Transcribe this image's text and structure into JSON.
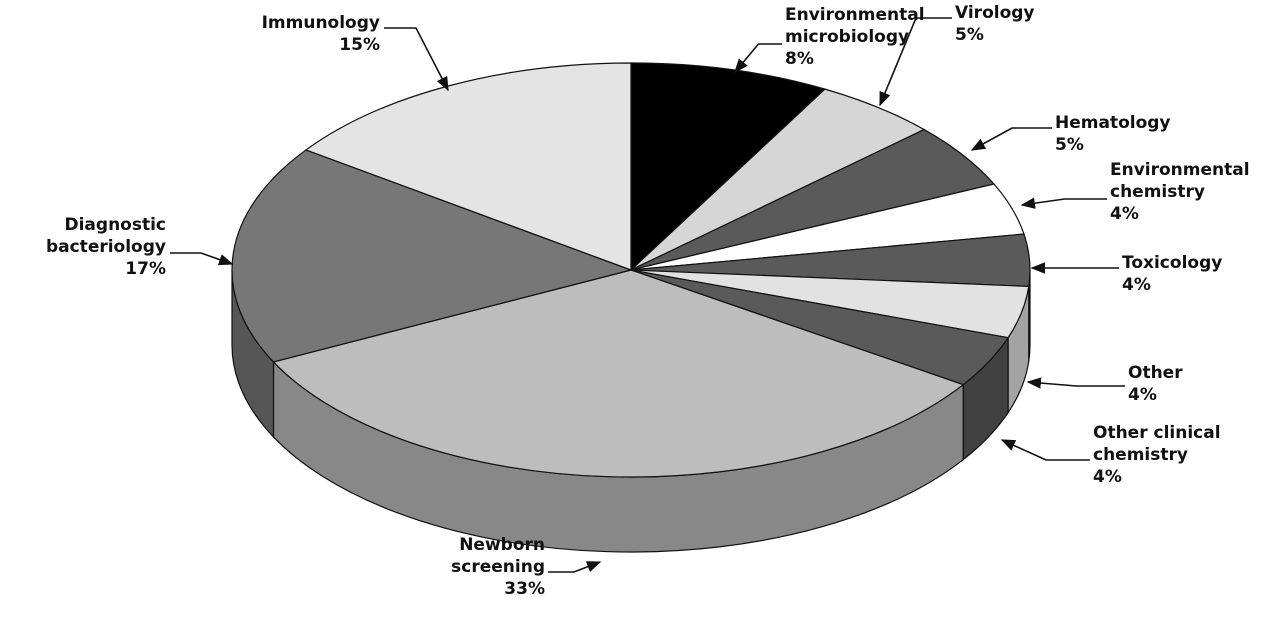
{
  "chart_data": {
    "type": "pie3d",
    "categories": [
      "Environmental\nmicrobiology",
      "Virology",
      "Hematology",
      "Environmental\nchemistry",
      "Toxicology",
      "Other",
      "Other clinical\nchemistry",
      "Newborn\nscreening",
      "Diagnostic\nbacteriology",
      "Immunology"
    ],
    "values": [
      8,
      5,
      5,
      4,
      4,
      4,
      4,
      33,
      17,
      15
    ],
    "value_labels": [
      "8%",
      "5%",
      "5%",
      "4%",
      "4%",
      "4%",
      "4%",
      "33%",
      "17%",
      "15%"
    ],
    "colors": [
      "#000000",
      "#d6d6d6",
      "#5a5a5a",
      "#ffffff",
      "#5a5a5a",
      "#e2e2e2",
      "#5a5a5a",
      "#bdbdbd",
      "#777777",
      "#e4e4e4"
    ]
  }
}
